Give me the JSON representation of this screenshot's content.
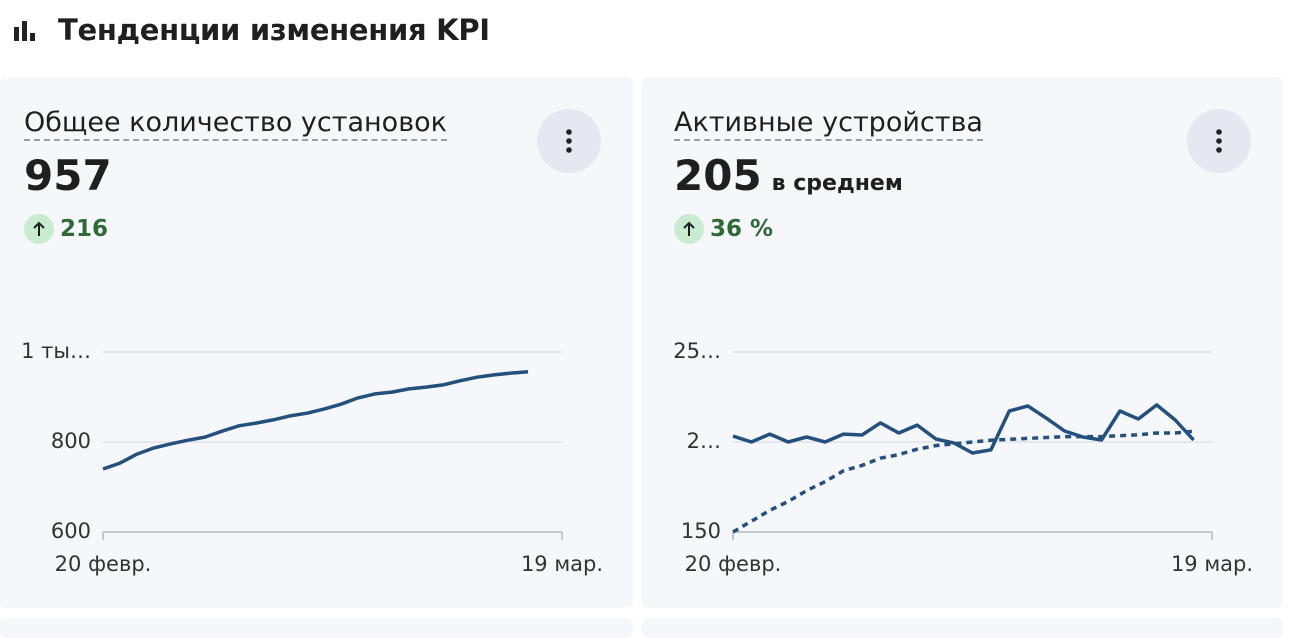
{
  "header": {
    "title": "Тенденции изменения KPI"
  },
  "cards": [
    {
      "title": "Общее количество установок",
      "value": "957",
      "delta": "216",
      "chart": {
        "type": "line",
        "x": [
          0,
          1,
          2,
          3,
          4,
          5,
          6,
          7,
          8,
          9,
          10,
          11,
          12,
          13,
          14,
          15,
          16,
          17,
          18,
          19,
          20,
          21,
          22,
          23,
          24,
          25
        ],
        "xlim": [
          0,
          27
        ],
        "xticks": [
          {
            "value": 0,
            "label": "20 февр."
          },
          {
            "value": 27,
            "label": "19 мар."
          }
        ],
        "ylim": [
          600,
          1000
        ],
        "yticks": [
          600,
          800,
          {
            "value": 1000,
            "label": "1 ты…"
          }
        ],
        "grid": true,
        "series": [
          {
            "color": "#24507e",
            "style": "solid",
            "values": [
              740,
              753,
              773,
              787,
              796,
              804,
              811,
              824,
              836,
              842,
              849,
              858,
              864,
              873,
              884,
              898,
              907,
              911,
              918,
              922,
              927,
              936,
              944,
              949,
              953,
              956
            ]
          }
        ]
      }
    },
    {
      "title": "Активные устройства",
      "value": "205",
      "suffix": "в среднем",
      "delta": "36 %",
      "chart": {
        "type": "line",
        "x": [
          0,
          1,
          2,
          3,
          4,
          5,
          6,
          7,
          8,
          9,
          10,
          11,
          12,
          13,
          14,
          15,
          16,
          17,
          18,
          19,
          20,
          21,
          22,
          23,
          24,
          25
        ],
        "xlim": [
          0,
          26
        ],
        "xticks": [
          {
            "value": 0,
            "label": "20 февр."
          },
          {
            "value": 26,
            "label": "19 мар."
          }
        ],
        "ylim": [
          150,
          250
        ],
        "yticks": [
          150,
          {
            "value": 200,
            "label": "2…"
          },
          {
            "value": 250,
            "label": "25…"
          }
        ],
        "grid": true,
        "series": [
          {
            "color": "#24507e",
            "style": "solid",
            "values": [
              203.3,
              200,
              204.4,
              200,
              202.8,
              200,
              204.4,
              203.9,
              210.6,
              205,
              209.4,
              201.7,
              199.4,
              193.9,
              195.6,
              217.2,
              220,
              213.3,
              206.1,
              202.8,
              201.1,
              217.2,
              212.8,
              220.6,
              212.2,
              201.1
            ]
          },
          {
            "color": "#24507e",
            "style": "dashed",
            "values": [
              150,
              156,
              162,
              167,
              173,
              178,
              184,
              187,
              191,
              193,
              196,
              198,
              199,
              200,
              201,
              201.5,
              202,
              202.5,
              203,
              203,
              203,
              203.5,
              204,
              205,
              205,
              206
            ]
          }
        ]
      }
    }
  ]
}
